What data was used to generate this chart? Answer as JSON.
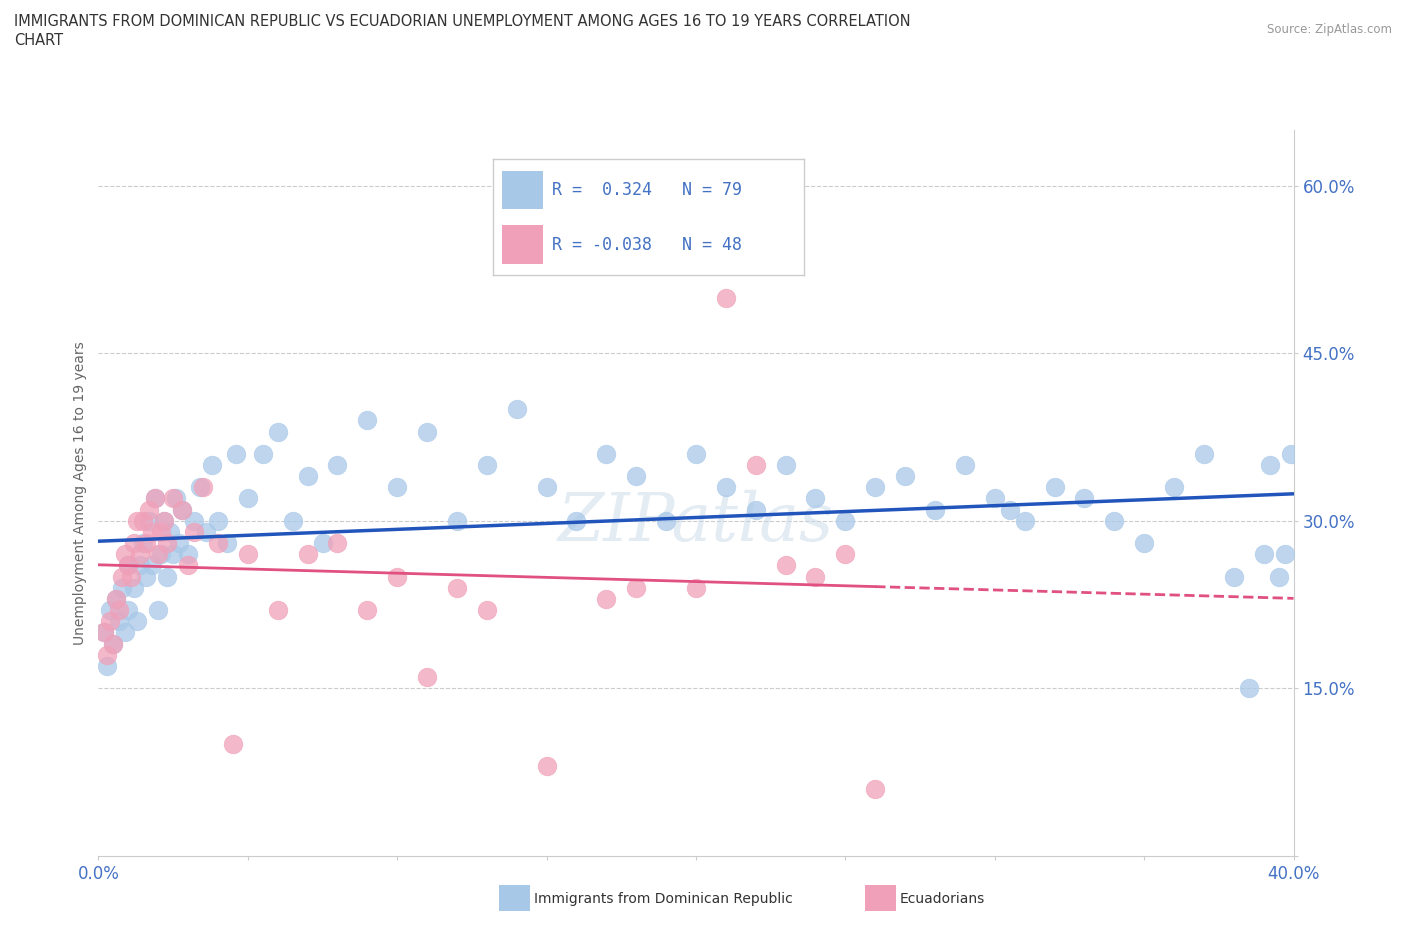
{
  "title_line1": "IMMIGRANTS FROM DOMINICAN REPUBLIC VS ECUADORIAN UNEMPLOYMENT AMONG AGES 16 TO 19 YEARS CORRELATION",
  "title_line2": "CHART",
  "source_text": "Source: ZipAtlas.com",
  "ylabel": "Unemployment Among Ages 16 to 19 years",
  "xlim": [
    0.0,
    0.4
  ],
  "ylim": [
    0.0,
    0.65
  ],
  "xticks": [
    0.0,
    0.05,
    0.1,
    0.15,
    0.2,
    0.25,
    0.3,
    0.35,
    0.4
  ],
  "yticks": [
    0.0,
    0.15,
    0.3,
    0.45,
    0.6
  ],
  "blue_R": 0.324,
  "blue_N": 79,
  "pink_R": -0.038,
  "pink_N": 48,
  "blue_color": "#A8C8E8",
  "pink_color": "#F0A0B8",
  "blue_line_color": "#2255BB",
  "pink_line_color": "#E05080",
  "axis_color": "#4472C4",
  "blue_scatter_x": [
    0.002,
    0.003,
    0.004,
    0.005,
    0.006,
    0.007,
    0.008,
    0.009,
    0.01,
    0.01,
    0.012,
    0.013,
    0.014,
    0.015,
    0.016,
    0.017,
    0.018,
    0.019,
    0.02,
    0.021,
    0.022,
    0.023,
    0.024,
    0.025,
    0.026,
    0.027,
    0.028,
    0.03,
    0.032,
    0.034,
    0.036,
    0.038,
    0.04,
    0.043,
    0.046,
    0.05,
    0.055,
    0.06,
    0.065,
    0.07,
    0.075,
    0.08,
    0.09,
    0.1,
    0.11,
    0.12,
    0.13,
    0.14,
    0.15,
    0.16,
    0.17,
    0.18,
    0.19,
    0.2,
    0.21,
    0.22,
    0.23,
    0.24,
    0.25,
    0.26,
    0.27,
    0.28,
    0.29,
    0.3,
    0.305,
    0.31,
    0.32,
    0.33,
    0.34,
    0.35,
    0.36,
    0.37,
    0.38,
    0.385,
    0.39,
    0.392,
    0.395,
    0.397,
    0.399
  ],
  "blue_scatter_y": [
    0.2,
    0.17,
    0.22,
    0.19,
    0.23,
    0.21,
    0.24,
    0.2,
    0.22,
    0.26,
    0.24,
    0.21,
    0.26,
    0.28,
    0.25,
    0.3,
    0.26,
    0.32,
    0.22,
    0.27,
    0.3,
    0.25,
    0.29,
    0.27,
    0.32,
    0.28,
    0.31,
    0.27,
    0.3,
    0.33,
    0.29,
    0.35,
    0.3,
    0.28,
    0.36,
    0.32,
    0.36,
    0.38,
    0.3,
    0.34,
    0.28,
    0.35,
    0.39,
    0.33,
    0.38,
    0.3,
    0.35,
    0.4,
    0.33,
    0.3,
    0.36,
    0.34,
    0.3,
    0.36,
    0.33,
    0.31,
    0.35,
    0.32,
    0.3,
    0.33,
    0.34,
    0.31,
    0.35,
    0.32,
    0.31,
    0.3,
    0.33,
    0.32,
    0.3,
    0.28,
    0.33,
    0.36,
    0.25,
    0.15,
    0.27,
    0.35,
    0.25,
    0.27,
    0.36
  ],
  "pink_scatter_x": [
    0.002,
    0.003,
    0.004,
    0.005,
    0.006,
    0.007,
    0.008,
    0.009,
    0.01,
    0.011,
    0.012,
    0.013,
    0.014,
    0.015,
    0.016,
    0.017,
    0.018,
    0.019,
    0.02,
    0.021,
    0.022,
    0.023,
    0.025,
    0.028,
    0.03,
    0.032,
    0.035,
    0.04,
    0.045,
    0.05,
    0.06,
    0.07,
    0.08,
    0.09,
    0.1,
    0.11,
    0.12,
    0.13,
    0.15,
    0.17,
    0.18,
    0.2,
    0.21,
    0.22,
    0.23,
    0.24,
    0.25,
    0.26
  ],
  "pink_scatter_y": [
    0.2,
    0.18,
    0.21,
    0.19,
    0.23,
    0.22,
    0.25,
    0.27,
    0.26,
    0.25,
    0.28,
    0.3,
    0.27,
    0.3,
    0.28,
    0.31,
    0.29,
    0.32,
    0.27,
    0.29,
    0.3,
    0.28,
    0.32,
    0.31,
    0.26,
    0.29,
    0.33,
    0.28,
    0.1,
    0.27,
    0.22,
    0.27,
    0.28,
    0.22,
    0.25,
    0.16,
    0.24,
    0.22,
    0.08,
    0.23,
    0.24,
    0.24,
    0.5,
    0.35,
    0.26,
    0.25,
    0.27,
    0.06
  ]
}
